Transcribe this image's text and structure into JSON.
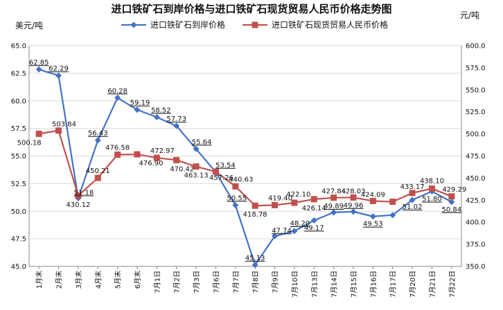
{
  "chart_data": {
    "type": "line",
    "title": "进口铁矿石到岸价格与进口铁矿石现货贸易人民币价格走势图",
    "ylabel_left": "美元/吨",
    "ylabel_right": "元/吨",
    "categories": [
      "1月末",
      "2月末",
      "3月末",
      "4月末",
      "5月末",
      "6月末",
      "7月1日",
      "7月2日",
      "7月3日",
      "7月6日",
      "7月7日",
      "7月8日",
      "7月9日",
      "7月10日",
      "7月13日",
      "7月14日",
      "7月15日",
      "7月16日",
      "7月17日",
      "7月20日",
      "7月21日",
      "7月22日"
    ],
    "ylim_left": [
      45.0,
      65.0
    ],
    "ylim_right": [
      350.0,
      600.0
    ],
    "yticks_left": [
      "45.0",
      "47.5",
      "50.0",
      "52.5",
      "55.0",
      "57.5",
      "60.0",
      "62.5",
      "65.0"
    ],
    "yticks_right": [
      "350.0",
      "375.0",
      "400.0",
      "425.0",
      "450.0",
      "475.0",
      "500.0",
      "525.0",
      "550.0",
      "575.0",
      "600.0"
    ],
    "grid": "horizontal",
    "legend_position": "top",
    "series": [
      {
        "name": "进口铁矿石到岸价格",
        "axis": "left",
        "color": "#4472c4",
        "marker": "diamond",
        "values": [
          62.85,
          62.29,
          51.18,
          56.43,
          60.28,
          59.19,
          58.52,
          57.73,
          55.64,
          53.54,
          50.55,
          45.13,
          47.74,
          48.2,
          49.17,
          49.89,
          49.96,
          49.53,
          49.65,
          51.02,
          51.8,
          50.84
        ],
        "labels": [
          "62.85",
          "62.29",
          "51.18",
          "56.43",
          "60.28",
          "59.19",
          "58.52",
          "57.73",
          "55.64",
          "53.54",
          "50.55",
          "45.13",
          "47.74",
          "48.20",
          "49.17",
          "49.89",
          "49.96",
          "49.53",
          "",
          "51.02",
          "51.80",
          "50.84"
        ]
      },
      {
        "name": "进口铁矿石现货贸易人民币价格",
        "axis": "right",
        "color": "#c0504d",
        "marker": "square",
        "values": [
          500.18,
          503.84,
          430.12,
          450.21,
          476.58,
          476.9,
          472.97,
          470.42,
          463.13,
          457.26,
          440.63,
          418.78,
          419.4,
          422.1,
          426.14,
          427.84,
          428.03,
          424.09,
          423.2,
          433.17,
          438.1,
          429.29
        ],
        "labels": [
          "500.18",
          "503.84",
          "430.12",
          "450.21",
          "476.58",
          "476.90",
          "472.97",
          "470.42",
          "463.13",
          "457.26",
          "440.63",
          "418.78",
          "419.40",
          "422.10",
          "426.14",
          "427.84",
          "428.03",
          "424.09",
          "",
          "433.17",
          "438.10",
          "429.29"
        ]
      }
    ]
  }
}
